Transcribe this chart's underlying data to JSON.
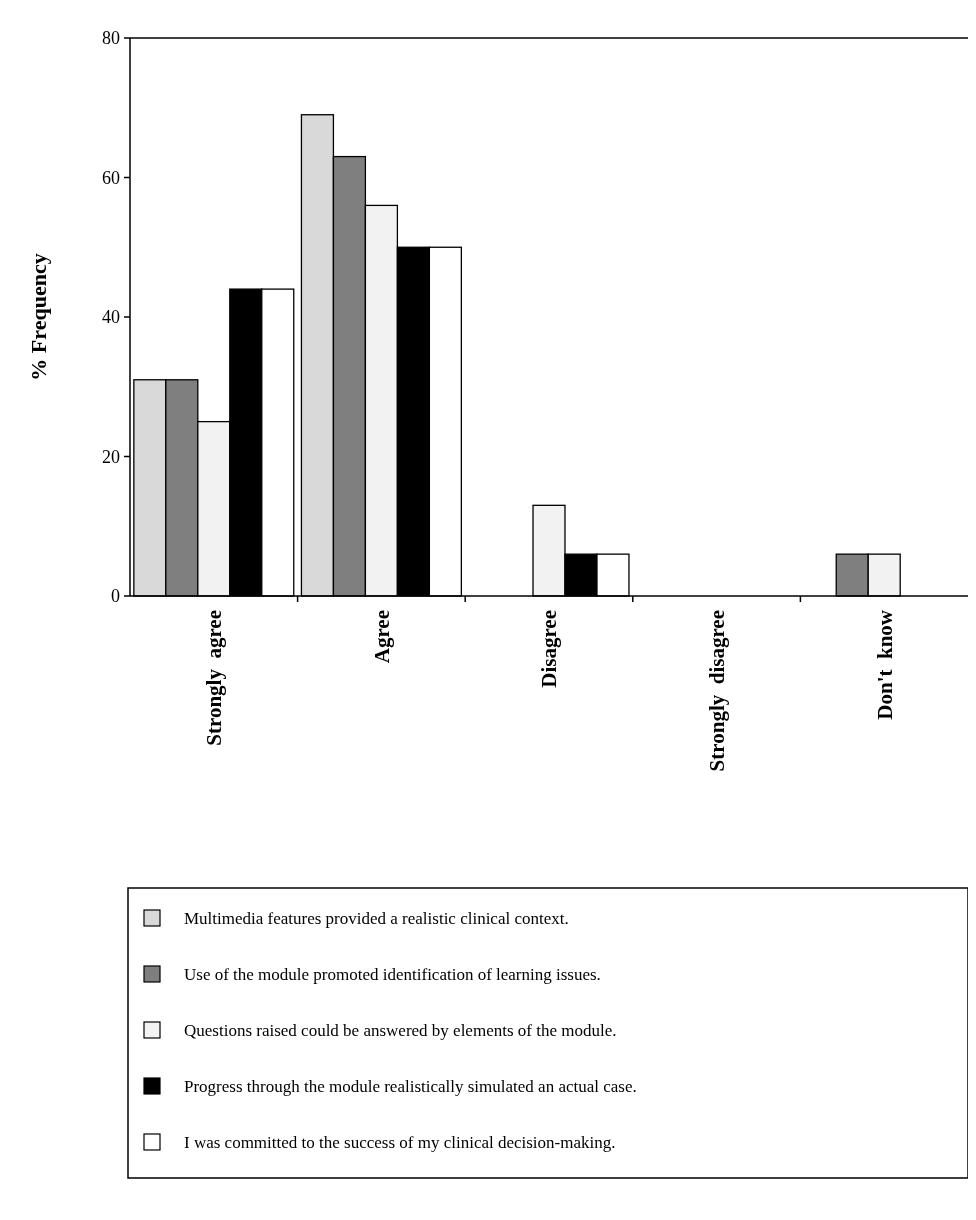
{
  "chart_data": {
    "type": "bar",
    "ylabel": "% Frequency",
    "categories": [
      "Strongly  agree",
      "Agree",
      "Disagree",
      "Strongly  disagree",
      "Don't  know"
    ],
    "ylim": [
      0,
      80
    ],
    "yticks": [
      0,
      20,
      40,
      60,
      80
    ],
    "grid": false,
    "legend": "bottom",
    "series": [
      {
        "name": "Multimedia features provided a realistic clinical context.",
        "color": "#d9d9d9",
        "values": [
          31,
          69,
          0,
          0,
          0
        ]
      },
      {
        "name": "Use of the module promoted identification of learning issues.",
        "color": "#7f7f7f",
        "values": [
          31,
          63,
          0,
          0,
          6
        ]
      },
      {
        "name": "Questions raised could be answered by elements of the module.",
        "color": "#f2f2f2",
        "values": [
          25,
          56,
          13,
          0,
          6
        ]
      },
      {
        "name": "Progress through the module realistically simulated an actual case.",
        "color": "#000000",
        "values": [
          44,
          50,
          6,
          0,
          0
        ]
      },
      {
        "name": "I was committed to the success of my clinical decision-making.",
        "color": "#ffffff",
        "values": [
          44,
          50,
          6,
          0,
          0
        ]
      }
    ]
  }
}
